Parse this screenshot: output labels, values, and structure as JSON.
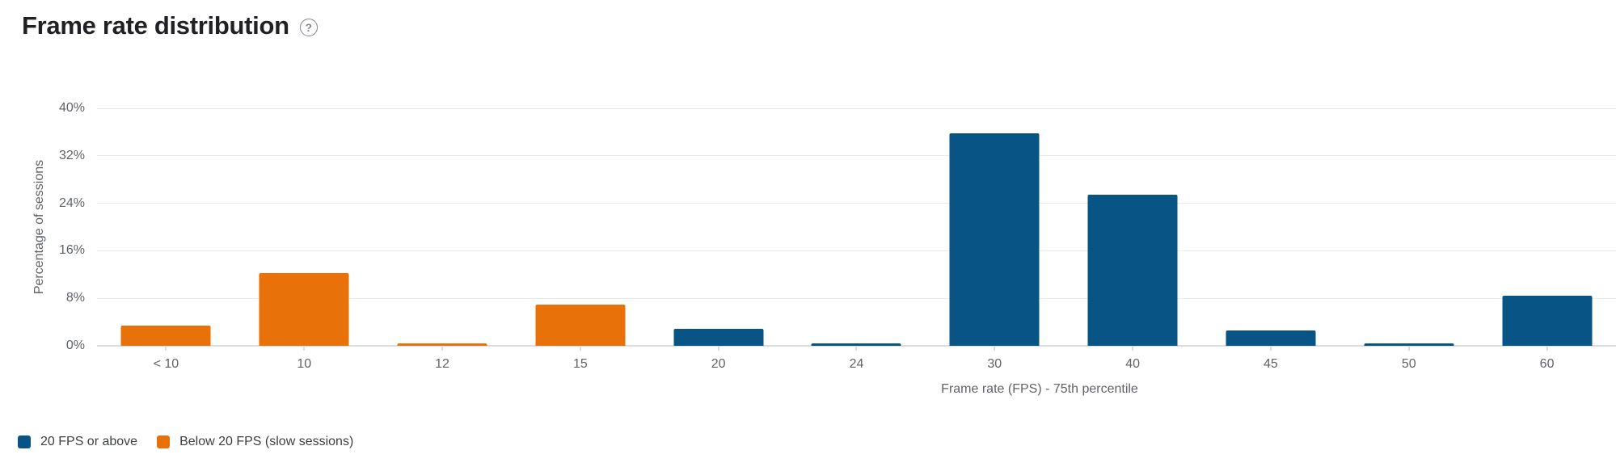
{
  "header": {
    "title": "Frame rate distribution",
    "help_icon_glyph": "?"
  },
  "colors": {
    "blue": "#085485",
    "orange": "#e8710a",
    "gridline": "#e9ebed",
    "baseline": "#dadce0",
    "title_text": "#202124",
    "axis_text": "#5f6368",
    "legend_text": "#3c4043"
  },
  "chart_data": {
    "type": "bar",
    "title": "Frame rate distribution",
    "xlabel": "Frame rate (FPS) - 75th percentile",
    "ylabel": "Percentage of sessions",
    "ylim": [
      0,
      40
    ],
    "yticks": [
      0,
      8,
      16,
      24,
      32,
      40
    ],
    "ytick_labels": [
      "0%",
      "8%",
      "16%",
      "24%",
      "32%",
      "40%"
    ],
    "grid": true,
    "legend_position": "bottom-left",
    "categories": [
      "< 10",
      "10",
      "12",
      "15",
      "20",
      "24",
      "30",
      "40",
      "45",
      "50",
      "60"
    ],
    "values": [
      3.4,
      12.3,
      0.4,
      7.0,
      2.9,
      0.4,
      35.8,
      25.5,
      2.6,
      0.4,
      8.4
    ],
    "series_of_bar": [
      "below20",
      "below20",
      "below20",
      "below20",
      "above20",
      "above20",
      "above20",
      "above20",
      "above20",
      "above20",
      "above20"
    ],
    "series": [
      {
        "name": "20 FPS or above",
        "key": "above20",
        "color": "#085485"
      },
      {
        "name": "Below 20 FPS (slow sessions)",
        "key": "below20",
        "color": "#e8710a"
      }
    ]
  },
  "legend": {
    "items": [
      {
        "label": "20 FPS or above",
        "color": "#085485"
      },
      {
        "label": "Below 20 FPS (slow sessions)",
        "color": "#e8710a"
      }
    ]
  }
}
